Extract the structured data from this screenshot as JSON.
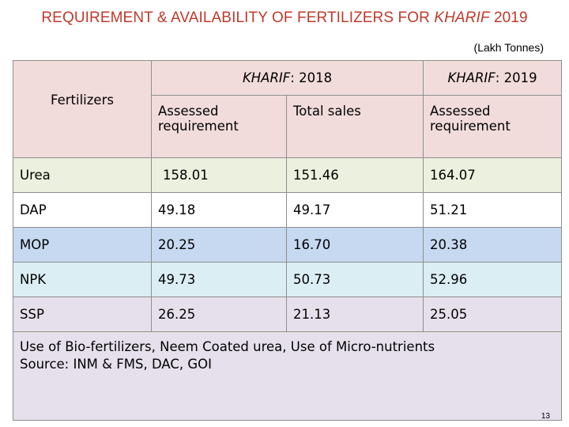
{
  "slide": {
    "title_prefix": "REQUIREMENT & AVAILABILITY OF FERTILIZERS FOR ",
    "title_italic": "KHARIF",
    "title_suffix": " 2019",
    "unit": "(Lakh Tonnes)",
    "page_number": "13"
  },
  "table": {
    "fertilizers_header": "Fertilizers",
    "group_2018_italic": "KHARIF",
    "group_2018_rest": ": 2018",
    "group_2019_italic": "KHARIF",
    "group_2019_rest": ": 2019",
    "col_assessed_2018": "Assessed requirement",
    "col_total_sales_2018": "Total sales",
    "col_assessed_2019": "Assessed requirement",
    "rows": [
      {
        "name": "Urea",
        "assessed_2018": "158.01",
        "sales_2018": "151.46",
        "assessed_2019": "164.07"
      },
      {
        "name": "DAP",
        "assessed_2018": "49.18",
        "sales_2018": "49.17",
        "assessed_2019": "51.21"
      },
      {
        "name": "MOP",
        "assessed_2018": "20.25",
        "sales_2018": "16.70",
        "assessed_2019": "20.38"
      },
      {
        "name": "NPK",
        "assessed_2018": "49.73",
        "sales_2018": "50.73",
        "assessed_2019": "52.96"
      },
      {
        "name": "SSP",
        "assessed_2018": "26.25",
        "sales_2018": "21.13",
        "assessed_2019": "25.05"
      }
    ],
    "note_line1": "Use of Bio-fertilizers, Neem Coated urea, Use of Micro-nutrients",
    "note_line2": "Source: INM & FMS, DAC, GOI"
  },
  "colors": {
    "title": "#c0392b",
    "header_bg": "#f2dcdb",
    "urea_bg": "#ebf1de",
    "dap_bg": "#ffffff",
    "mop_bg": "#c6d9f1",
    "npk_bg": "#dbeef4",
    "ssp_bg": "#e6e0ec",
    "note_bg": "#e6e0ec"
  }
}
